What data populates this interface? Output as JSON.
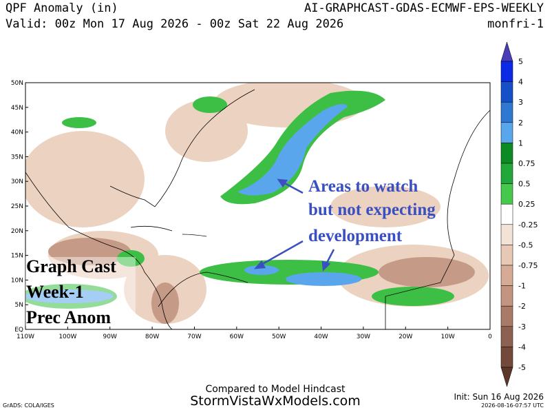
{
  "header": {
    "title": "QPF Anomaly (in)",
    "model": "AI-GRAPHCAST-GDAS-ECMWF-EPS-WEEKLY",
    "valid": "Valid: 00z Mon 17 Aug 2026 - 00z Sat 22 Aug 2026",
    "group": "monfri-1"
  },
  "map": {
    "lat_labels": [
      "50N",
      "45N",
      "40N",
      "35N",
      "30N",
      "25N",
      "20N",
      "15N",
      "10N",
      "5N",
      "EQ"
    ],
    "lon_labels": [
      "110W",
      "100W",
      "90W",
      "80W",
      "70W",
      "60W",
      "50W",
      "40W",
      "30W",
      "20W",
      "10W",
      "0"
    ],
    "overlay": [
      "Graph Cast",
      "Week-1",
      "Prec Anom"
    ],
    "annotation": [
      "Areas to watch",
      "but not expecting",
      "development"
    ]
  },
  "colorbar": {
    "labels": [
      "5",
      "4",
      "3",
      "2",
      "1",
      "0.75",
      "0.5",
      "0.25",
      "-0.25",
      "-0.5",
      "-0.75",
      "-1",
      "-2",
      "-3",
      "-4",
      "-5"
    ],
    "colors": [
      "#4a3cb8",
      "#0a2ae6",
      "#1650c8",
      "#2e78d2",
      "#5aa6ec",
      "#0e8a24",
      "#22a83a",
      "#46c84c",
      "#ffffff",
      "#f3e2d6",
      "#e6c8b4",
      "#d6ab96",
      "#c39480",
      "#a97a68",
      "#8d6152",
      "#73493c",
      "#5c3628"
    ]
  },
  "footer": {
    "compare": "Compared to Model Hindcast",
    "site": "StormVistaWxModels.com",
    "init": "Init: Sun 16 Aug 2026",
    "grads": "GrADS: COLA/IGES",
    "stamp": "2026-08-16-07:57 UTC"
  }
}
